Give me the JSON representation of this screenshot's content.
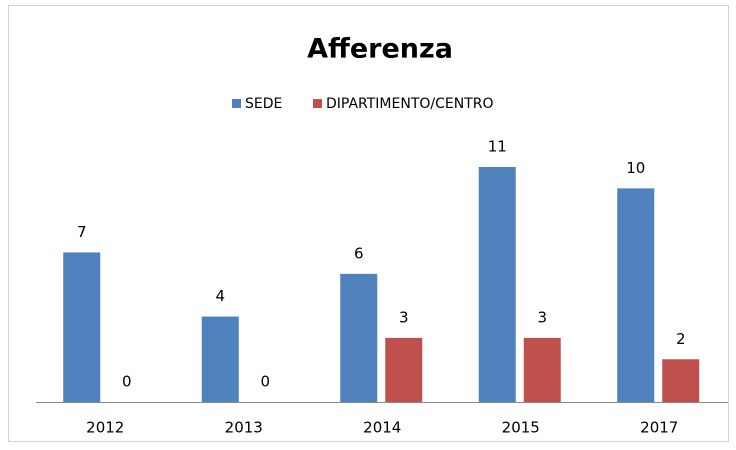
{
  "chart_data": {
    "type": "bar",
    "title": "Afferenza",
    "categories": [
      "2012",
      "2013",
      "2014",
      "2015",
      "2017"
    ],
    "series": [
      {
        "name": "SEDE",
        "color": "#4f81bd",
        "values": [
          7,
          4,
          6,
          11,
          10
        ]
      },
      {
        "name": "DIPARTIMENTO/CENTRO",
        "color": "#c0504d",
        "values": [
          0,
          0,
          3,
          3,
          2
        ]
      }
    ],
    "legend": "top"
  }
}
